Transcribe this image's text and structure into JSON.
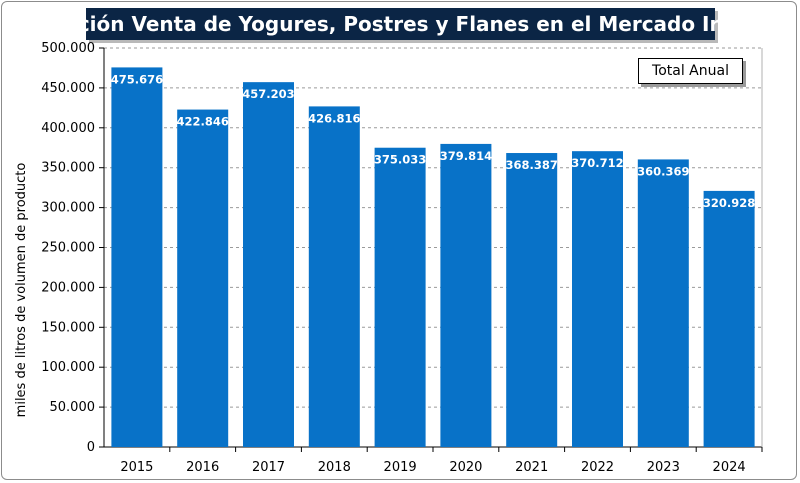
{
  "chart_data": {
    "type": "bar",
    "title": "Evolución Venta de Yogures, Postres y Flanes en el Mercado Interno",
    "ylabel": "miles de litros de volumen de producto",
    "xlabel": "",
    "legend": "Total Anual",
    "legend_position": "top-right",
    "grid": true,
    "ylim": [
      0,
      500000
    ],
    "yticks": [
      0,
      50000,
      100000,
      150000,
      200000,
      250000,
      300000,
      350000,
      400000,
      450000,
      500000
    ],
    "ytick_labels": [
      "0",
      "50.000",
      "100.000",
      "150.000",
      "200.000",
      "250.000",
      "300.000",
      "350.000",
      "400.000",
      "450.000",
      "500.000"
    ],
    "categories": [
      "2015",
      "2016",
      "2017",
      "2018",
      "2019",
      "2020",
      "2021",
      "2022",
      "2023",
      "2024"
    ],
    "values": [
      475676,
      422846,
      457203,
      426816,
      375033,
      379814,
      368387,
      370712,
      360369,
      320928
    ],
    "value_labels": [
      "475.676",
      "422.846",
      "457.203",
      "426.816",
      "375.033",
      "379.814",
      "368.387",
      "370.712",
      "360.369",
      "320.928"
    ],
    "bar_color": "#0872c8",
    "title_bg_color": "#0b2545"
  }
}
